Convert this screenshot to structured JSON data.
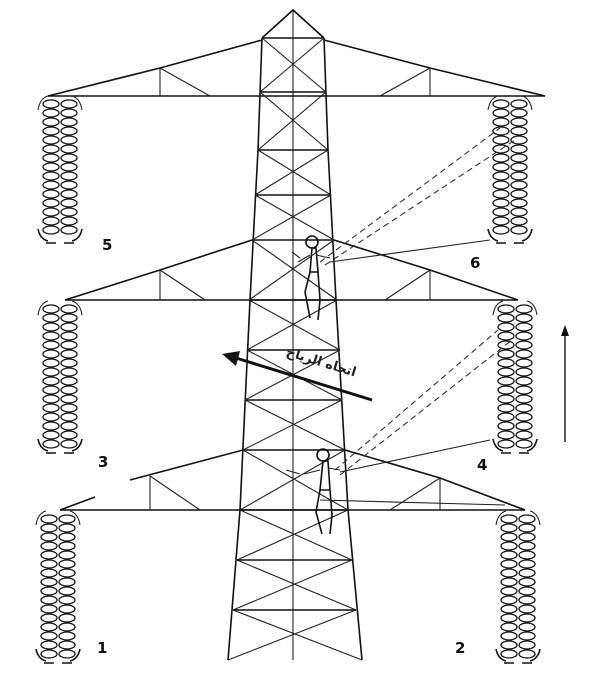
{
  "diagram": {
    "labels": {
      "p1": "1",
      "p2": "2",
      "p3": "3",
      "p4": "4",
      "p5": "5",
      "p6": "6"
    },
    "wind_label": "اتجاه الرياح",
    "line_color": "#111111",
    "background": "#ffffff"
  }
}
